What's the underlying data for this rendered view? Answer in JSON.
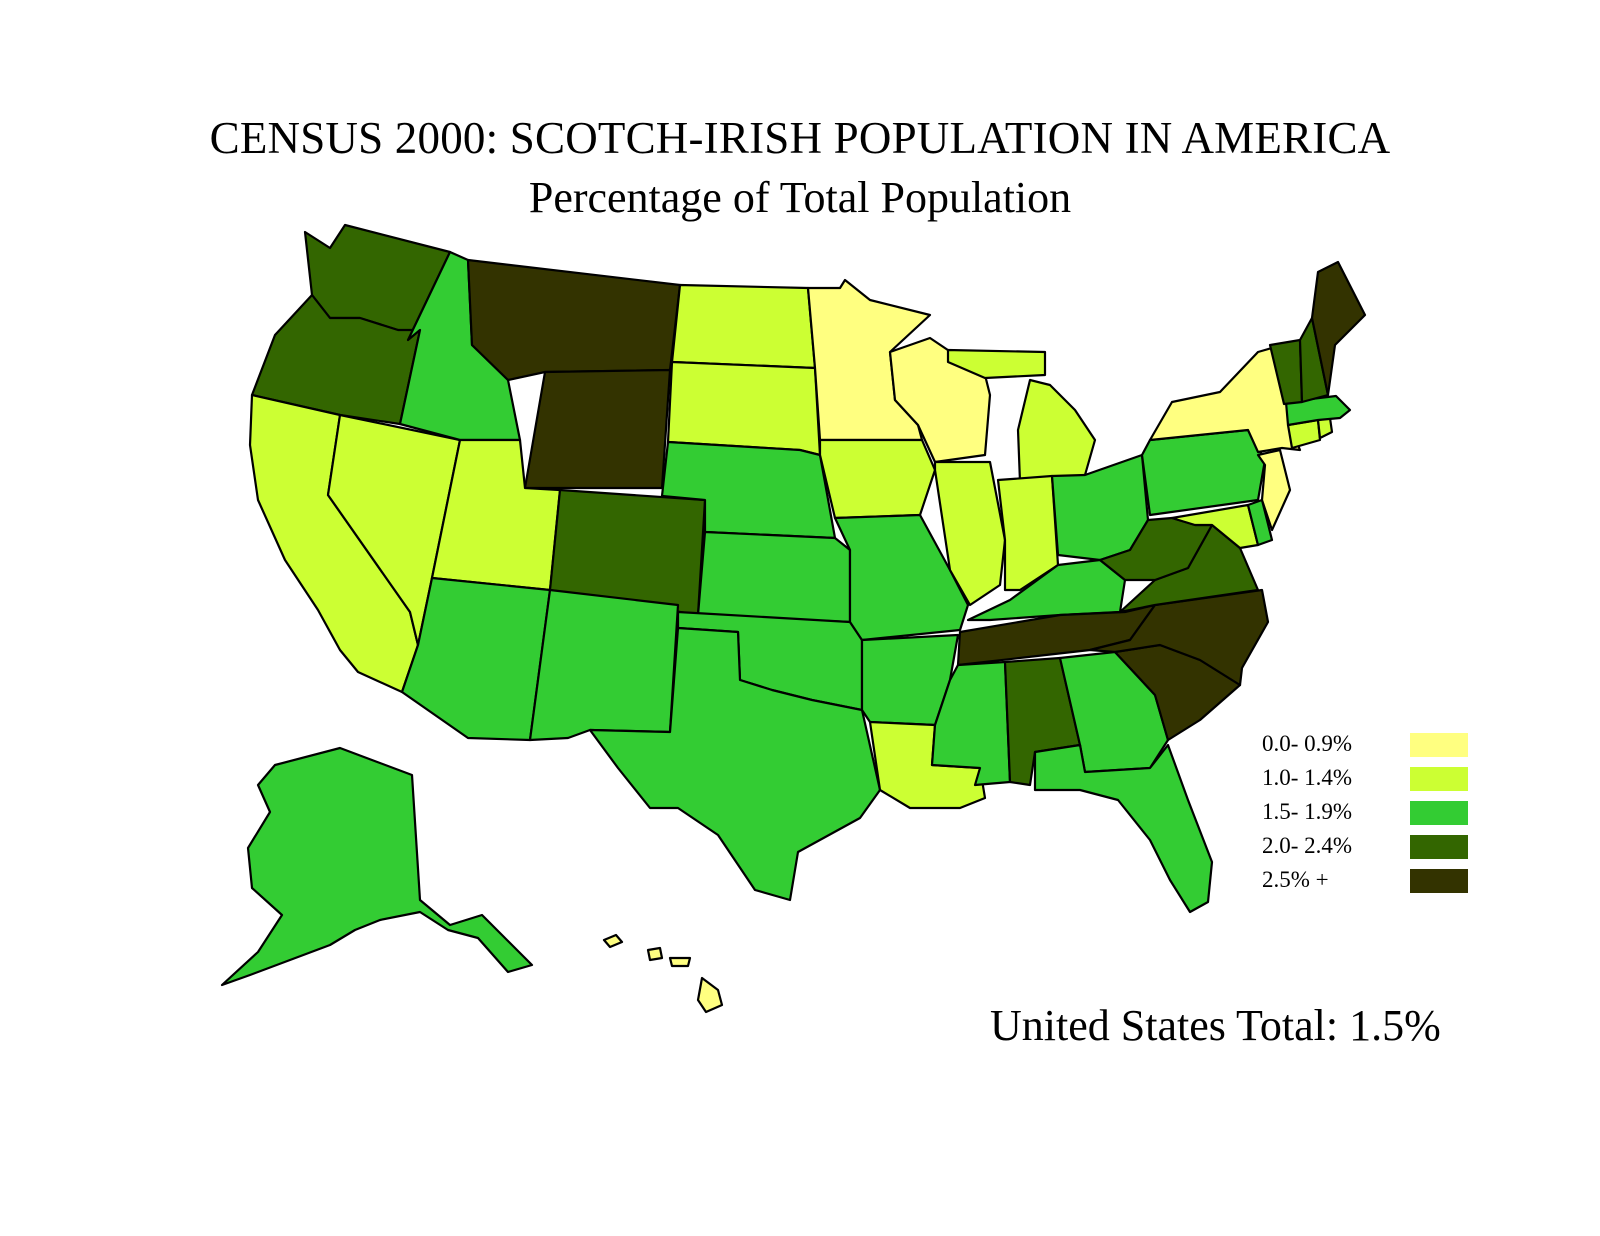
{
  "title": "CENSUS 2000: SCOTCH-IRISH POPULATION IN AMERICA",
  "subtitle": "Percentage of Total Population",
  "total_label": "United States Total: 1.5%",
  "legend": [
    {
      "label": "0.0- 0.9%",
      "color": "#ffff80"
    },
    {
      "label": "1.0- 1.4%",
      "color": "#ccff33"
    },
    {
      "label": "1.5- 1.9%",
      "color": "#33cc33"
    },
    {
      "label": "2.0- 2.4%",
      "color": "#336600"
    },
    {
      "label": "2.5% +",
      "color": "#333300"
    }
  ],
  "states": {
    "washington": 3,
    "oregon": 3,
    "california": 1,
    "nevada": 1,
    "idaho": 2,
    "montana": 4,
    "wyoming": 4,
    "utah": 1,
    "colorado": 3,
    "arizona": 2,
    "new-mexico": 2,
    "north-dakota": 1,
    "south-dakota": 1,
    "nebraska": 2,
    "kansas": 2,
    "oklahoma": 2,
    "texas": 2,
    "minnesota": 0,
    "iowa": 1,
    "missouri": 2,
    "arkansas": 2,
    "louisiana": 1,
    "wisconsin": 0,
    "illinois": 1,
    "michigan": 1,
    "indiana": 1,
    "ohio": 2,
    "kentucky": 2,
    "tennessee": 4,
    "mississippi": 2,
    "alabama": 3,
    "georgia": 2,
    "florida": 2,
    "south-carolina": 4,
    "north-carolina": 4,
    "virginia": 3,
    "west-virginia": 3,
    "maryland": 1,
    "delaware": 2,
    "pennsylvania": 2,
    "new-jersey": 0,
    "new-york": 0,
    "connecticut": 1,
    "rhode-island": 1,
    "massachusetts": 2,
    "vermont": 3,
    "new-hampshire": 3,
    "maine": 4,
    "alaska": 2,
    "hawaii": 0
  }
}
